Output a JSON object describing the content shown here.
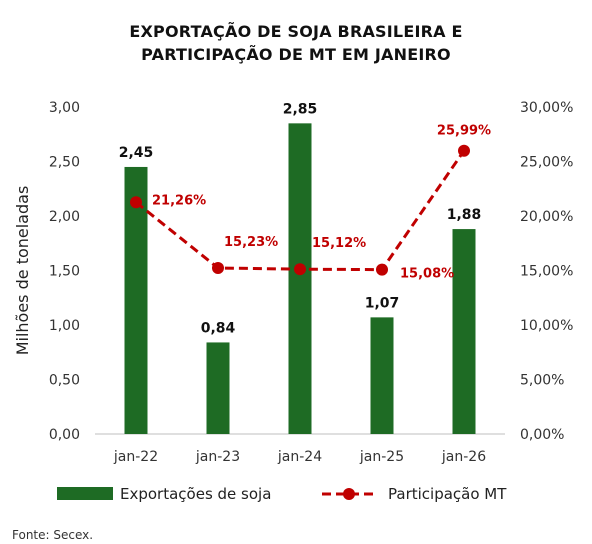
{
  "chart_data": {
    "type": "bar+line",
    "title_lines": [
      "EXPORTAÇÃO DE SOJA BRASILEIRA E",
      "PARTICIPAÇÃO DE MT EM JANEIRO"
    ],
    "categories": [
      "jan-22",
      "jan-23",
      "jan-24",
      "jan-25",
      "jan-26"
    ],
    "ylabel": "Milhões de toneladas",
    "ylim": [
      0,
      3
    ],
    "y_ticks": [
      "0,00",
      "0,50",
      "1,00",
      "1,50",
      "2,00",
      "2,50",
      "3,00"
    ],
    "y2lim": [
      0,
      30
    ],
    "y2_ticks": [
      "0,00%",
      "5,00%",
      "10,00%",
      "15,00%",
      "20,00%",
      "25,00%",
      "30,00%"
    ],
    "series": [
      {
        "name": "Exportações de soja",
        "type": "bar",
        "axis": "left",
        "color": "#1e6b24",
        "values": [
          2.45,
          0.84,
          2.85,
          1.07,
          1.88
        ],
        "labels": [
          "2,45",
          "0,84",
          "2,85",
          "1,07",
          "1,88"
        ]
      },
      {
        "name": "Participação MT",
        "type": "line",
        "axis": "right",
        "style": "dashed",
        "color": "#c00000",
        "values": [
          21.26,
          15.23,
          15.12,
          15.08,
          25.99
        ],
        "labels": [
          "21,26%",
          "15,23%",
          "15,12%",
          "15,08%",
          "25,99%"
        ]
      }
    ],
    "legend_position": "bottom",
    "grid": false
  },
  "source": "Fonte: Secex."
}
